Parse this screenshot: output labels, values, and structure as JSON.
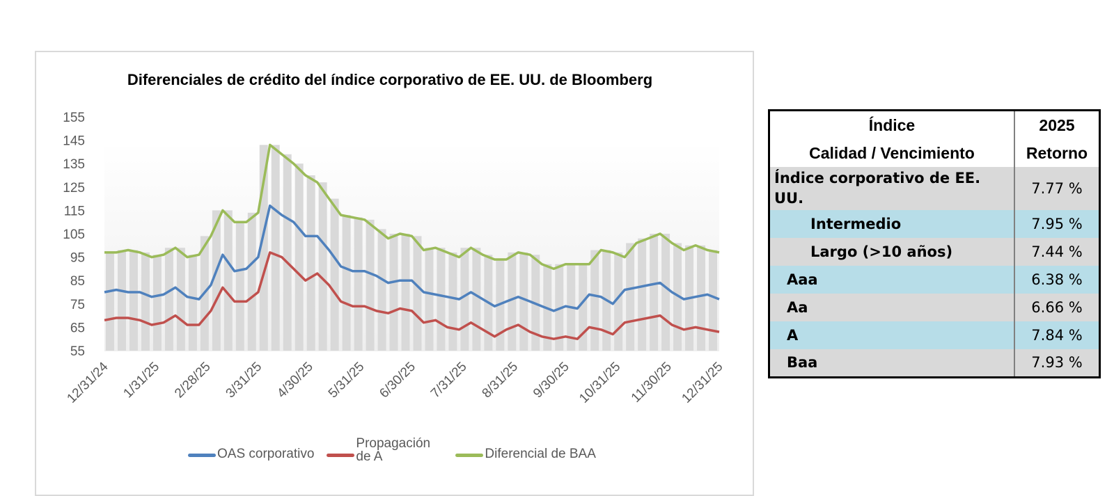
{
  "chart_data": {
    "type": "line",
    "title": "Diferenciales de crédito del índice corporativo de EE. UU. de Bloomberg",
    "xlabel": "",
    "ylabel": "",
    "ylim": [
      55,
      155
    ],
    "yticks": [
      "155",
      "145",
      "135",
      "125",
      "115",
      "105",
      "95",
      "85",
      "75",
      "65",
      "55"
    ],
    "xticks": [
      "12/31/24",
      "1/31/25",
      "2/28/25",
      "3/31/25",
      "4/30/25",
      "5/31/25",
      "6/30/25",
      "7/31/25",
      "8/31/25",
      "9/30/25",
      "10/31/25",
      "11/30/25",
      "12/31/25"
    ],
    "x_note": "weekly observations from 12/31/24 to 12/31/25",
    "legend_placement": "bottom",
    "series": [
      {
        "name": "OAS corporativo",
        "color": "#4f81bd",
        "values": [
          80,
          81,
          80,
          80,
          78,
          79,
          82,
          78,
          77,
          83,
          96,
          89,
          90,
          95,
          117,
          113,
          110,
          104,
          104,
          98,
          91,
          89,
          89,
          87,
          84,
          85,
          85,
          80,
          79,
          78,
          77,
          80,
          77,
          74,
          76,
          78,
          76,
          74,
          72,
          74,
          73,
          79,
          78,
          75,
          81,
          82,
          83,
          84,
          80,
          77,
          78,
          79,
          77
        ]
      },
      {
        "name": "Propagación de A",
        "color": "#c0504d",
        "values": [
          68,
          69,
          69,
          68,
          66,
          67,
          70,
          66,
          66,
          72,
          82,
          76,
          76,
          80,
          97,
          95,
          90,
          85,
          88,
          83,
          76,
          74,
          74,
          72,
          71,
          73,
          72,
          67,
          68,
          65,
          64,
          67,
          64,
          61,
          64,
          66,
          63,
          61,
          60,
          61,
          60,
          65,
          64,
          62,
          67,
          68,
          69,
          70,
          66,
          64,
          65,
          64,
          63
        ]
      },
      {
        "name": "Diferencial de BAA",
        "color": "#9bbb59",
        "values": [
          97,
          97,
          98,
          97,
          95,
          96,
          99,
          95,
          96,
          104,
          115,
          110,
          110,
          114,
          143,
          139,
          135,
          130,
          127,
          120,
          113,
          112,
          111,
          107,
          103,
          105,
          104,
          98,
          99,
          97,
          95,
          99,
          96,
          94,
          94,
          97,
          96,
          92,
          90,
          92,
          92,
          92,
          98,
          97,
          95,
          101,
          103,
          105,
          101,
          98,
          100,
          98,
          97
        ]
      }
    ]
  },
  "table": {
    "header": {
      "col1_line1": "Índice",
      "col1_line2": "Calidad / Vencimiento",
      "col2_line1": "2025",
      "col2_line2": "Retorno"
    },
    "rows": [
      {
        "label": "Índice corporativo de EE. UU.",
        "value": "7.77 %"
      },
      {
        "label": "Intermedio",
        "value": "7.95 %"
      },
      {
        "label": "Largo (>10 años)",
        "value": "7.44 %"
      },
      {
        "label": "Aaa",
        "value": "6.38 %"
      },
      {
        "label": "Aa",
        "value": "6.66 %"
      },
      {
        "label": "A",
        "value": "7.84 %"
      },
      {
        "label": "Baa",
        "value": "7.93 %"
      }
    ]
  }
}
